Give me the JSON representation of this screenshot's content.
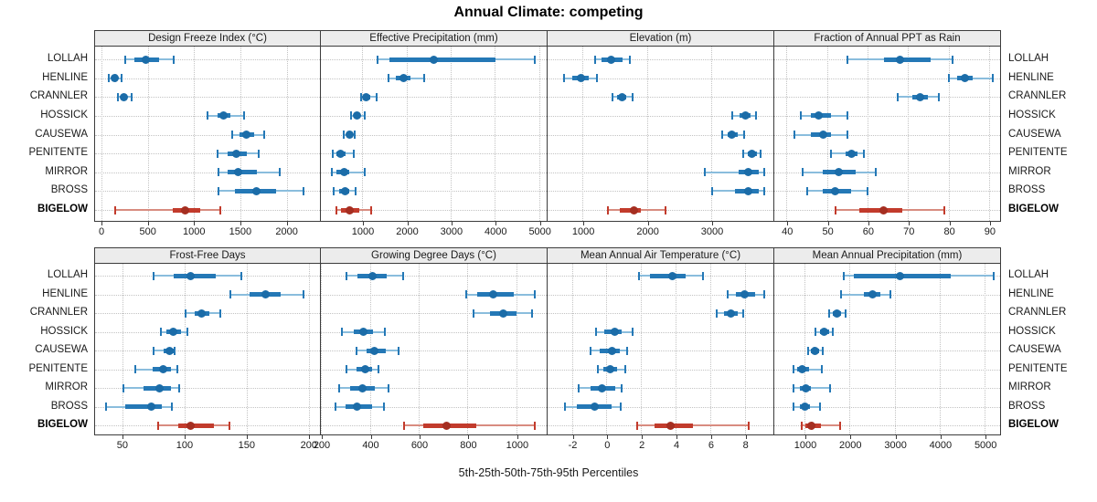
{
  "title": "Annual Climate: competing",
  "caption": "5th-25th-50th-75th-95th Percentiles",
  "colors": {
    "series": "#2478b6",
    "series_light": "#8abddd",
    "series_dark": "#1b6ca8",
    "highlight": "#c23b2c",
    "highlight_light": "#d88c80",
    "highlight_dark": "#a52e21",
    "panel_header_bg": "#ececec",
    "panel_border": "#3c3c3c",
    "grid": "#c3c3c3"
  },
  "chart_data": {
    "type": "scatter",
    "subtype": "median dot with 5-25-75-95 percentile whiskers, trellis 2x4 panels, free x scales",
    "title": "Annual Climate: competing",
    "caption": "5th-25th-50th-75th-95th Percentiles",
    "percentiles": [
      5,
      25,
      50,
      75,
      95
    ],
    "stations": [
      "LOLLAH",
      "HENLINE",
      "CRANNLER",
      "HOSSICK",
      "CAUSEWA",
      "PENITENTE",
      "MIRROR",
      "BROSS",
      "BIGELOW"
    ],
    "highlight_station": "BIGELOW",
    "legend_position": "bottom-caption",
    "grid": "dotted",
    "panels": [
      {
        "title": "Design Freeze Index (°C)",
        "xlim": [
          -70,
          2360
        ],
        "ticks": [
          0,
          500,
          1000,
          1500,
          2000
        ],
        "values": {
          "LOLLAH": [
            260,
            350,
            480,
            625,
            775
          ],
          "HENLINE": [
            80,
            105,
            145,
            175,
            215
          ],
          "CRANNLER": [
            175,
            210,
            240,
            270,
            320
          ],
          "HOSSICK": [
            1140,
            1250,
            1320,
            1390,
            1540
          ],
          "CAUSEWA": [
            1410,
            1490,
            1560,
            1650,
            1760
          ],
          "PENITENTE": [
            1250,
            1360,
            1460,
            1570,
            1700
          ],
          "MIRROR": [
            1260,
            1360,
            1480,
            1680,
            1920
          ],
          "BROSS": [
            1260,
            1440,
            1670,
            1890,
            2180
          ],
          "BIGELOW": [
            145,
            770,
            900,
            1070,
            1280
          ]
        }
      },
      {
        "title": "Effective Precipitation (mm)",
        "xlim": [
          70,
          5150
        ],
        "ticks": [
          1000,
          2000,
          3000,
          4000,
          5000
        ],
        "values": {
          "LOLLAH": [
            1350,
            1620,
            2620,
            4020,
            4900
          ],
          "HENLINE": [
            1600,
            1760,
            1930,
            2100,
            2410
          ],
          "CRANNLER": [
            970,
            1020,
            1100,
            1190,
            1320
          ],
          "HOSSICK": [
            750,
            810,
            880,
            970,
            1070
          ],
          "CAUSEWA": [
            590,
            660,
            710,
            770,
            840
          ],
          "PENITENTE": [
            340,
            410,
            520,
            620,
            810
          ],
          "MIRROR": [
            310,
            430,
            590,
            720,
            1050
          ],
          "BROSS": [
            360,
            480,
            610,
            720,
            860
          ],
          "BIGELOW": [
            410,
            520,
            720,
            930,
            1210
          ]
        }
      },
      {
        "title": "Elevation (m)",
        "xlim": [
          460,
          3950
        ],
        "ticks": [
          1000,
          2000,
          3000
        ],
        "values": {
          "LOLLAH": [
            1190,
            1290,
            1450,
            1620,
            1740
          ],
          "HENLINE": [
            710,
            845,
            975,
            1100,
            1220
          ],
          "CRANNLER": [
            1470,
            1540,
            1610,
            1680,
            1780
          ],
          "HOSSICK": [
            3330,
            3440,
            3530,
            3610,
            3690
          ],
          "CAUSEWA": [
            3170,
            3250,
            3320,
            3410,
            3510
          ],
          "PENITENTE": [
            3500,
            3560,
            3630,
            3710,
            3770
          ],
          "MIRROR": [
            2900,
            3420,
            3570,
            3745,
            3820
          ],
          "BROSS": [
            3010,
            3370,
            3570,
            3745,
            3815
          ],
          "BIGELOW": [
            1390,
            1575,
            1800,
            1910,
            2290
          ]
        }
      },
      {
        "title": "Fraction of Annual PPT as Rain",
        "xlim": [
          37,
          92.5
        ],
        "ticks": [
          40,
          50,
          60,
          70,
          80,
          90
        ],
        "values": {
          "LOLLAH": [
            55,
            64,
            68,
            75.5,
            81
          ],
          "HENLINE": [
            80,
            82,
            84,
            86,
            91
          ],
          "CRANNLER": [
            67.5,
            71,
            73,
            75,
            77.5
          ],
          "HOSSICK": [
            43.5,
            46,
            48,
            51,
            55
          ],
          "CAUSEWA": [
            42,
            46,
            49,
            51,
            55
          ],
          "PENITENTE": [
            51,
            54.5,
            56,
            57.5,
            59
          ],
          "MIRROR": [
            44,
            49,
            53,
            57,
            62
          ],
          "BROSS": [
            45,
            49,
            52,
            56,
            60
          ],
          "BIGELOW": [
            52,
            58,
            64,
            68.5,
            79
          ]
        }
      },
      {
        "title": "Frost-Free Days",
        "xlim": [
          28,
          209
        ],
        "ticks": [
          50,
          100,
          150,
          200
        ],
        "values": {
          "LOLLAH": [
            75,
            91,
            105,
            125,
            146
          ],
          "HENLINE": [
            137,
            152,
            165,
            177,
            196
          ],
          "CRANNLER": [
            101,
            108,
            114,
            120,
            129
          ],
          "HOSSICK": [
            81,
            85,
            91,
            97,
            102
          ],
          "CAUSEWA": [
            75,
            83,
            88,
            91,
            92
          ],
          "PENITENTE": [
            60,
            74,
            83,
            89,
            94
          ],
          "MIRROR": [
            51,
            67,
            80,
            89,
            96
          ],
          "BROSS": [
            37,
            52,
            73,
            82,
            90
          ],
          "BIGELOW": [
            79,
            95,
            105,
            124,
            136
          ]
        }
      },
      {
        "title": "Growing Degree Days (°C)",
        "xlim": [
          200,
          1120
        ],
        "ticks": [
          200,
          400,
          600,
          800,
          1000
        ],
        "values": {
          "LOLLAH": [
            305,
            350,
            410,
            470,
            535
          ],
          "HENLINE": [
            795,
            840,
            905,
            990,
            1075
          ],
          "CRANNLER": [
            825,
            890,
            945,
            1000,
            1065
          ],
          "HOSSICK": [
            287,
            335,
            375,
            415,
            460
          ],
          "CAUSEWA": [
            346,
            385,
            420,
            465,
            517
          ],
          "PENITENTE": [
            306,
            346,
            380,
            410,
            434
          ],
          "MIRROR": [
            275,
            321,
            369,
            421,
            477
          ],
          "BROSS": [
            259,
            302,
            346,
            409,
            459
          ],
          "BIGELOW": [
            540,
            620,
            715,
            835,
            1075
          ]
        }
      },
      {
        "title": "Mean Annual Air Temperature (°C)",
        "xlim": [
          -3.4,
          9.6
        ],
        "ticks": [
          -2,
          0,
          2,
          4,
          6,
          8
        ],
        "values": {
          "LOLLAH": [
            1.9,
            2.5,
            3.8,
            4.6,
            5.6
          ],
          "HENLINE": [
            7.0,
            7.5,
            8.0,
            8.6,
            9.1
          ],
          "CRANNLER": [
            6.4,
            6.8,
            7.2,
            7.6,
            7.9
          ],
          "HOSSICK": [
            -0.6,
            -0.1,
            0.5,
            0.9,
            1.5
          ],
          "CAUSEWA": [
            -0.9,
            -0.4,
            0.3,
            0.8,
            1.2
          ],
          "PENITENTE": [
            -0.5,
            -0.2,
            0.2,
            0.6,
            1.1
          ],
          "MIRROR": [
            -1.6,
            -0.9,
            -0.25,
            0.5,
            0.9
          ],
          "BROSS": [
            -2.4,
            -1.7,
            -0.7,
            0.3,
            0.8
          ],
          "BIGELOW": [
            1.8,
            2.8,
            3.7,
            5.0,
            8.2
          ]
        }
      },
      {
        "title": "Mean Annual Precipitation (mm)",
        "xlim": [
          330,
          5320
        ],
        "ticks": [
          1000,
          2000,
          3000,
          4000,
          5000
        ],
        "values": {
          "LOLLAH": [
            1875,
            2090,
            3120,
            4250,
            5190
          ],
          "HENLINE": [
            1800,
            2310,
            2515,
            2680,
            2900
          ],
          "CRANNLER": [
            1550,
            1620,
            1710,
            1810,
            1910
          ],
          "HOSSICK": [
            1240,
            1340,
            1440,
            1540,
            1620
          ],
          "CAUSEWA": [
            1080,
            1150,
            1240,
            1320,
            1400
          ],
          "PENITENTE": [
            745,
            830,
            945,
            1100,
            1390
          ],
          "MIRROR": [
            765,
            900,
            1035,
            1150,
            1570
          ],
          "BROSS": [
            765,
            900,
            1000,
            1120,
            1340
          ],
          "BIGELOW": [
            930,
            1010,
            1150,
            1370,
            1795
          ]
        }
      }
    ]
  }
}
